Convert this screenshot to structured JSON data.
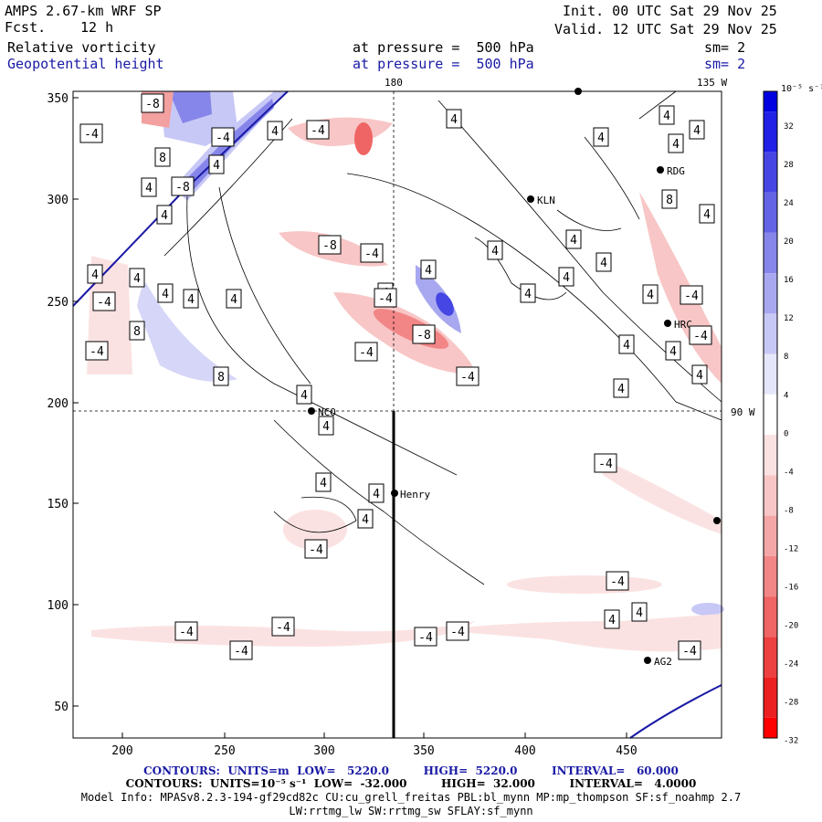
{
  "header": {
    "model": "AMPS 2.67-km WRF SP",
    "fcst_label": "Fcst.",
    "fcst_value": "12 h",
    "init": "Init. 00 UTC Sat 29 Nov 25",
    "valid": "Valid. 12 UTC Sat 29 Nov 25",
    "field1": "Relative vorticity",
    "field1_level": "at pressure =  500 hPa",
    "field1_sm": "sm= 2",
    "field2": "Geopotential height",
    "field2_level": "at pressure =  500 hPa",
    "field2_sm": "sm= 2"
  },
  "map": {
    "lon_180": "180",
    "lon_135w": "135 W",
    "lon_90w": "90 W",
    "x_ticks": [
      "200",
      "250",
      "300",
      "350",
      "400",
      "450"
    ],
    "y_ticks": [
      "350",
      "300",
      "250",
      "200",
      "150",
      "100",
      "50"
    ],
    "stations": [
      {
        "name": "NCO"
      },
      {
        "name": "Henry"
      },
      {
        "name": "KLN"
      },
      {
        "name": "RDG"
      },
      {
        "name": "HRC"
      },
      {
        "name": "AG2"
      }
    ],
    "contour_labels": {
      "pos": [
        "4",
        "4",
        "4",
        "4",
        "4",
        "4",
        "4",
        "4",
        "4",
        "4",
        "4",
        "4",
        "4",
        "4",
        "4",
        "4",
        "4",
        "4",
        "4",
        "4",
        "4",
        "4",
        "4",
        "4",
        "4",
        "4",
        "4",
        "4",
        "4",
        "4",
        "4",
        "4",
        "4",
        "4",
        "4",
        "8",
        "8",
        "8",
        "8"
      ],
      "neg": [
        "-4",
        "-4",
        "-4",
        "-4",
        "-4",
        "-4",
        "-4",
        "-4",
        "-4",
        "-4",
        "-4",
        "-4",
        "-4",
        "-4",
        "-4",
        "-4",
        "-4",
        "-4",
        "-4",
        "-4",
        "-8",
        "-8",
        "-8",
        "-8"
      ]
    }
  },
  "colorbar": {
    "units": "10⁻⁵ s⁻¹",
    "labels": [
      "32",
      "28",
      "24",
      "20",
      "16",
      "12",
      "8",
      "4",
      "0",
      "-4",
      "-8",
      "-12",
      "-16",
      "-20",
      "-24",
      "-28",
      "-32"
    ],
    "colors": [
      "#0000e0",
      "#2020e6",
      "#4646e4",
      "#6464e6",
      "#8686ea",
      "#a8a8f0",
      "#c8c8f6",
      "#e6e6fa",
      "#ffffff",
      "#fbe2e2",
      "#f8c6c6",
      "#f5a6a6",
      "#f28686",
      "#ef6464",
      "#ed4040",
      "#ec2020",
      "#ff0000"
    ]
  },
  "footer": {
    "line1": "CONTOURS:  UNITS=m  LOW=   5220.0         HIGH=  5220.0         INTERVAL=   60.000",
    "line2": "CONTOURS:  UNITS=10⁻⁵ s⁻¹  LOW=  -32.000         HIGH=  32.000         INTERVAL=   4.0000",
    "line3": "Model Info: MPASv8.2.3-194-gf29cd82c CU:cu_grell_freitas PBL:bl_mynn MP:mp_thompson SF:sf_noahmp 2.7",
    "line4": "LW:rrtmg_lw SW:rrtmg_sw SFLAY:sf_mynn"
  }
}
